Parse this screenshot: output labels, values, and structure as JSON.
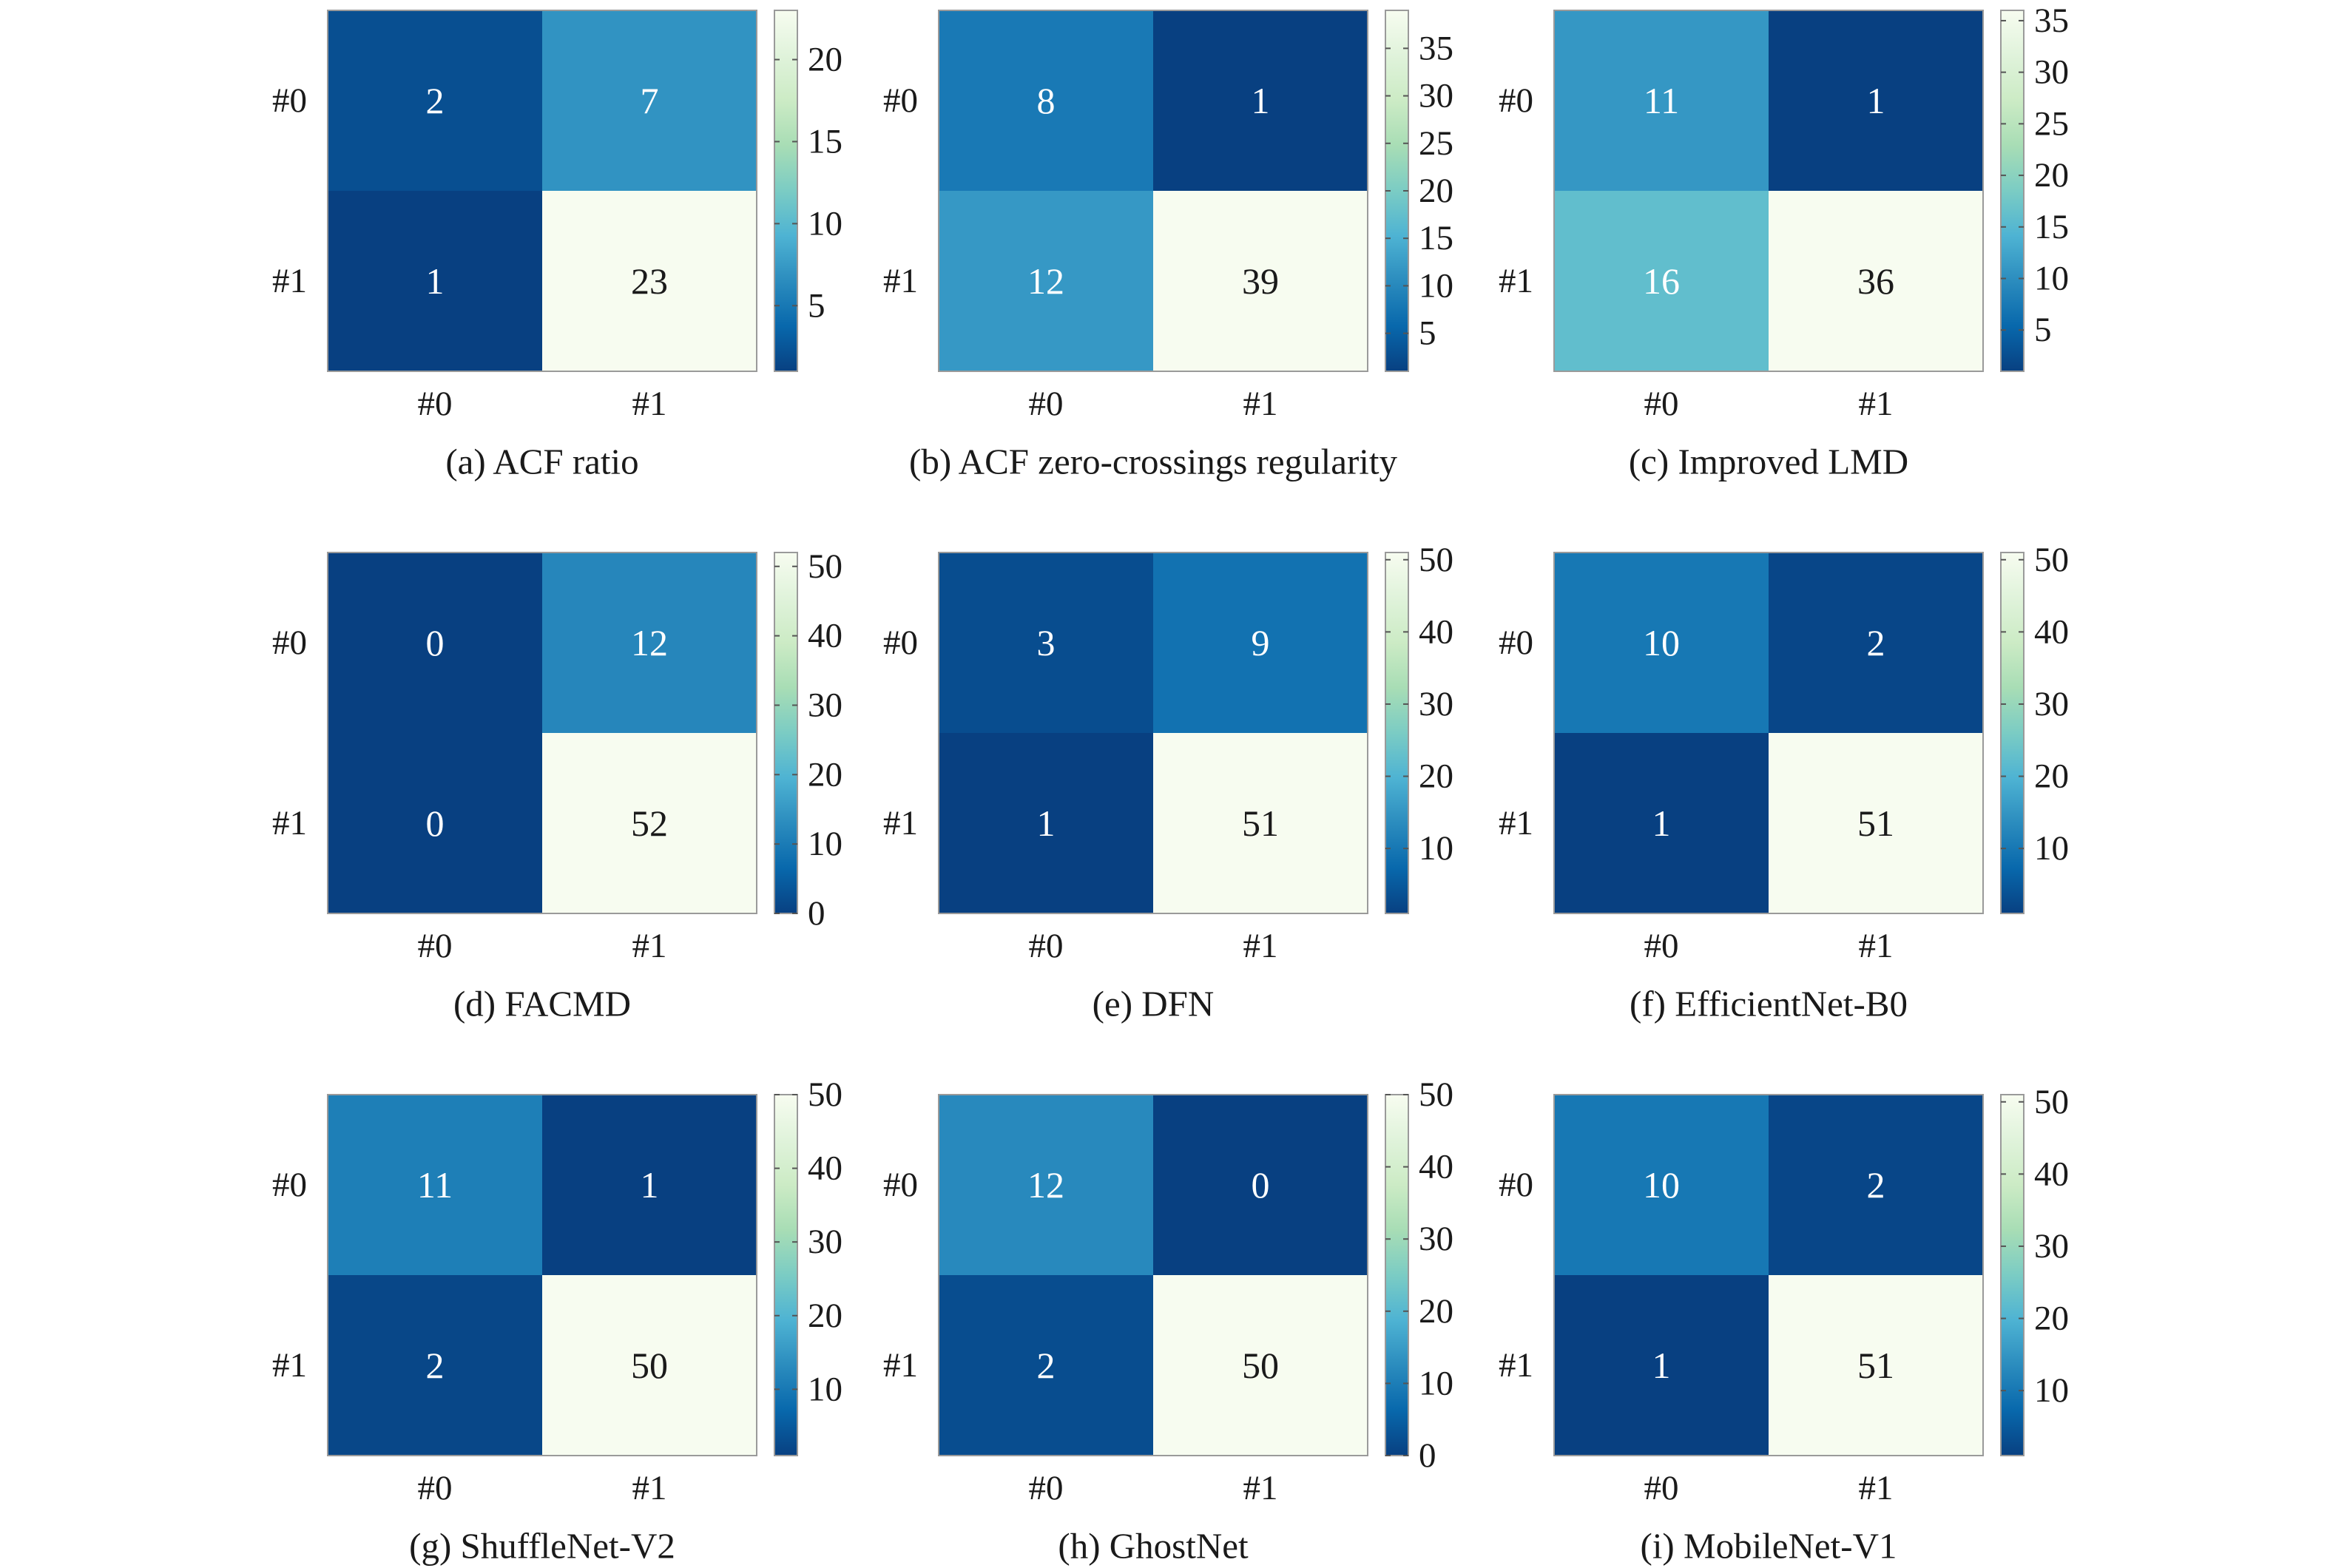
{
  "colormap": {
    "name": "GnBu reversed",
    "stops": [
      "#084081",
      "#0868ac",
      "#2b8cbe",
      "#4eb3d3",
      "#7bccc4",
      "#a8ddb5",
      "#ccebc5",
      "#e0f3db",
      "#f7fcf0"
    ]
  },
  "text_color_dark_cell": "#ffffff",
  "text_color_light_cell": "#1a1a1a",
  "chart_data": [
    {
      "type": "heatmap",
      "caption": "(a) ACF ratio",
      "rows": [
        "#0",
        "#1"
      ],
      "cols": [
        "#0",
        "#1"
      ],
      "values": [
        [
          2,
          7
        ],
        [
          1,
          23
        ]
      ],
      "colorbar": {
        "range": [
          1,
          23
        ],
        "ticks": [
          5,
          10,
          15,
          20
        ]
      }
    },
    {
      "type": "heatmap",
      "caption": "(b) ACF zero-crossings regularity",
      "rows": [
        "#0",
        "#1"
      ],
      "cols": [
        "#0",
        "#1"
      ],
      "values": [
        [
          8,
          1
        ],
        [
          12,
          39
        ]
      ],
      "colorbar": {
        "range": [
          1,
          39
        ],
        "ticks": [
          5,
          10,
          15,
          20,
          25,
          30,
          35
        ]
      }
    },
    {
      "type": "heatmap",
      "caption": "(c) Improved LMD",
      "rows": [
        "#0",
        "#1"
      ],
      "cols": [
        "#0",
        "#1"
      ],
      "values": [
        [
          11,
          1
        ],
        [
          16,
          36
        ]
      ],
      "colorbar": {
        "range": [
          1,
          36
        ],
        "ticks": [
          5,
          10,
          15,
          20,
          25,
          30,
          35
        ]
      }
    },
    {
      "type": "heatmap",
      "caption": "(d) FACMD",
      "rows": [
        "#0",
        "#1"
      ],
      "cols": [
        "#0",
        "#1"
      ],
      "values": [
        [
          0,
          12
        ],
        [
          0,
          52
        ]
      ],
      "colorbar": {
        "range": [
          0,
          52
        ],
        "ticks": [
          0,
          10,
          20,
          30,
          40,
          50
        ]
      }
    },
    {
      "type": "heatmap",
      "caption": "(e) DFN",
      "rows": [
        "#0",
        "#1"
      ],
      "cols": [
        "#0",
        "#1"
      ],
      "values": [
        [
          3,
          9
        ],
        [
          1,
          51
        ]
      ],
      "colorbar": {
        "range": [
          1,
          51
        ],
        "ticks": [
          10,
          20,
          30,
          40,
          50
        ]
      }
    },
    {
      "type": "heatmap",
      "caption": "(f) EfficientNet-B0",
      "rows": [
        "#0",
        "#1"
      ],
      "cols": [
        "#0",
        "#1"
      ],
      "values": [
        [
          10,
          2
        ],
        [
          1,
          51
        ]
      ],
      "colorbar": {
        "range": [
          1,
          51
        ],
        "ticks": [
          10,
          20,
          30,
          40,
          50
        ]
      }
    },
    {
      "type": "heatmap",
      "caption": "(g) ShuffleNet-V2",
      "rows": [
        "#0",
        "#1"
      ],
      "cols": [
        "#0",
        "#1"
      ],
      "values": [
        [
          11,
          1
        ],
        [
          2,
          50
        ]
      ],
      "colorbar": {
        "range": [
          1,
          50
        ],
        "ticks": [
          10,
          20,
          30,
          40,
          50
        ]
      }
    },
    {
      "type": "heatmap",
      "caption": "(h) GhostNet",
      "rows": [
        "#0",
        "#1"
      ],
      "cols": [
        "#0",
        "#1"
      ],
      "values": [
        [
          12,
          0
        ],
        [
          2,
          50
        ]
      ],
      "colorbar": {
        "range": [
          0,
          50
        ],
        "ticks": [
          0,
          10,
          20,
          30,
          40,
          50
        ]
      }
    },
    {
      "type": "heatmap",
      "caption": "(i) MobileNet-V1",
      "rows": [
        "#0",
        "#1"
      ],
      "cols": [
        "#0",
        "#1"
      ],
      "values": [
        [
          10,
          2
        ],
        [
          1,
          51
        ]
      ],
      "colorbar": {
        "range": [
          1,
          51
        ],
        "ticks": [
          10,
          20,
          30,
          40,
          50
        ]
      }
    }
  ]
}
